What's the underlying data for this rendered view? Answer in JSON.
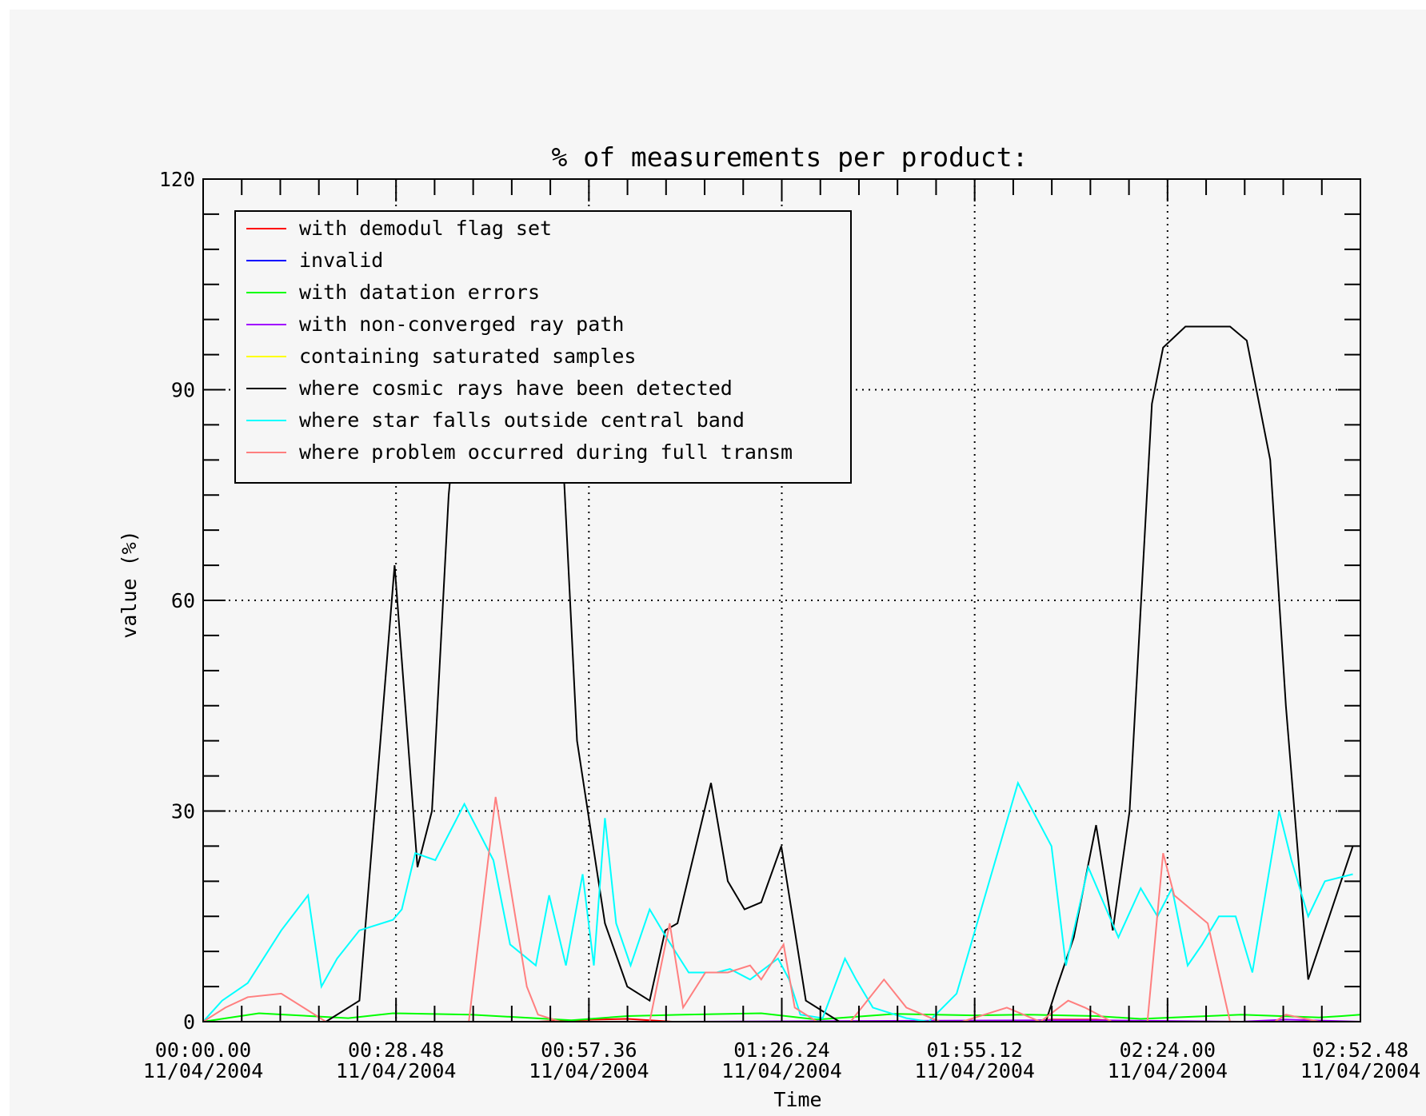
{
  "chart_data": {
    "type": "line",
    "title": "% of measurements per product:",
    "xlabel": "Time",
    "ylabel": "value (%)",
    "ylim": [
      0,
      120
    ],
    "y_ticks": [
      "0",
      "30",
      "60",
      "90",
      "120"
    ],
    "x_ticks": [
      {
        "time": "00:00.00",
        "date": "11/04/2004"
      },
      {
        "time": "00:28.48",
        "date": "11/04/2004"
      },
      {
        "time": "00:57.36",
        "date": "11/04/2004"
      },
      {
        "time": "01:26.24",
        "date": "11/04/2004"
      },
      {
        "time": "01:55.12",
        "date": "11/04/2004"
      },
      {
        "time": "02:24.00",
        "date": "11/04/2004"
      },
      {
        "time": "02:52.48",
        "date": "11/04/2004"
      }
    ],
    "xlim_seconds": [
      0,
      10368
    ],
    "grid": true,
    "legend_position": "top-left",
    "series": [
      {
        "name": "with demodul flag set",
        "color": "#ff0000",
        "x": [
          0,
          3000,
          3500,
          3800,
          4200,
          7300,
          7600,
          8000,
          8300
        ],
        "y": [
          0,
          0,
          0.3,
          0.4,
          0,
          0,
          0.3,
          0.3,
          0
        ]
      },
      {
        "name": "invalid",
        "color": "#0000ff",
        "x": [
          0,
          8640
        ],
        "y": [
          0,
          0
        ]
      },
      {
        "name": "with datation errors",
        "color": "#00ff00",
        "x": [
          0,
          500,
          1300,
          1700,
          2400,
          3300,
          3800,
          4300,
          5000,
          5500,
          6200,
          6900,
          7400,
          8000,
          8400,
          9300,
          10000,
          10200,
          10368
        ],
        "y": [
          0,
          1.2,
          0.5,
          1.2,
          1,
          0.2,
          0.8,
          1,
          1.2,
          0.3,
          1.1,
          0.9,
          1,
          0.8,
          0.4,
          1,
          0.6,
          0.8,
          1
        ]
      },
      {
        "name": "with non-converged ray path",
        "color": "#a000ff",
        "x": [
          0,
          4300,
          7500,
          8000,
          9300,
          9700,
          10368
        ],
        "y": [
          0,
          0,
          0.2,
          0.2,
          0,
          0.3,
          0
        ]
      },
      {
        "name": "containing saturated samples",
        "color": "#ffff00",
        "x": [
          0,
          10368
        ],
        "y": [
          0,
          0
        ]
      },
      {
        "name": "where cosmic rays have been detected",
        "color": "#000000",
        "x": [
          0,
          1100,
          1400,
          1715,
          1920,
          2050,
          2200,
          2340,
          2600,
          3000,
          3200,
          3350,
          3600,
          3800,
          4000,
          4140,
          4250,
          4550,
          4700,
          4850,
          5000,
          5180,
          5300,
          5400,
          5700,
          6000,
          6300,
          6550,
          7000,
          7400,
          7550,
          7650,
          7800,
          8000,
          8150,
          8300,
          8500,
          8600,
          8800,
          8900,
          9000,
          9200,
          9350,
          9560,
          9700,
          9900,
          10300
        ],
        "y": [
          0,
          0,
          3,
          65,
          22,
          30,
          75,
          99,
          99,
          99,
          88,
          40,
          14,
          5,
          3,
          13,
          14,
          34,
          20,
          16,
          17,
          25,
          13,
          3,
          0,
          0,
          0,
          0,
          0,
          0,
          0,
          5,
          12,
          28,
          13,
          30,
          88,
          96,
          99,
          99,
          99,
          99,
          97,
          80,
          45,
          6,
          25
        ]
      },
      {
        "name": "where star falls outside central band",
        "color": "#00ffff",
        "x": [
          0,
          170,
          400,
          700,
          940,
          1060,
          1200,
          1400,
          1700,
          1780,
          1900,
          2080,
          2340,
          2600,
          2750,
          2980,
          3100,
          3250,
          3400,
          3500,
          3600,
          3700,
          3830,
          4000,
          4150,
          4350,
          4600,
          4720,
          4900,
          5150,
          5250,
          5350,
          5550,
          5750,
          5850,
          6000,
          6300,
          6500,
          6750,
          7300,
          7600,
          7730,
          7930,
          8200,
          8400,
          8550,
          8680,
          8820,
          8950,
          9100,
          9250,
          9400,
          9640,
          9750,
          9900,
          10050,
          10300
        ],
        "y": [
          0,
          3,
          5.5,
          13,
          18,
          5,
          9,
          13,
          14.5,
          16,
          24,
          23,
          31,
          23,
          11,
          8,
          18,
          8,
          21,
          8,
          29,
          14,
          8,
          16,
          12,
          7,
          7,
          7.5,
          6,
          9,
          6,
          1,
          0.5,
          9,
          6,
          2,
          0.5,
          0,
          4,
          34,
          25,
          8,
          22,
          12,
          19,
          15,
          19,
          8,
          11,
          15,
          15,
          7,
          30,
          23,
          15,
          20,
          21
        ]
      },
      {
        "name": "where problem occurred during full transm",
        "color": "#ff7f7f",
        "x": [
          0,
          200,
          400,
          700,
          1100,
          1800,
          2100,
          2380,
          2620,
          2900,
          3000,
          3200,
          3600,
          4000,
          4180,
          4300,
          4500,
          4700,
          4900,
          5000,
          5200,
          5300,
          5500,
          5800,
          6100,
          6300,
          6600,
          6800,
          7200,
          7500,
          7750,
          7900,
          8140,
          8460,
          8600,
          8700,
          9000,
          9200,
          9600,
          9700,
          10000
        ],
        "y": [
          0,
          2,
          3.5,
          4,
          0,
          0,
          0,
          0,
          32,
          5,
          1,
          0,
          0,
          0,
          14,
          2,
          7,
          7,
          8,
          6,
          11,
          2,
          0,
          0,
          6,
          2,
          0,
          0,
          2,
          0,
          3,
          2,
          0,
          0,
          24,
          18,
          14,
          0,
          0,
          1,
          0
        ]
      }
    ]
  }
}
